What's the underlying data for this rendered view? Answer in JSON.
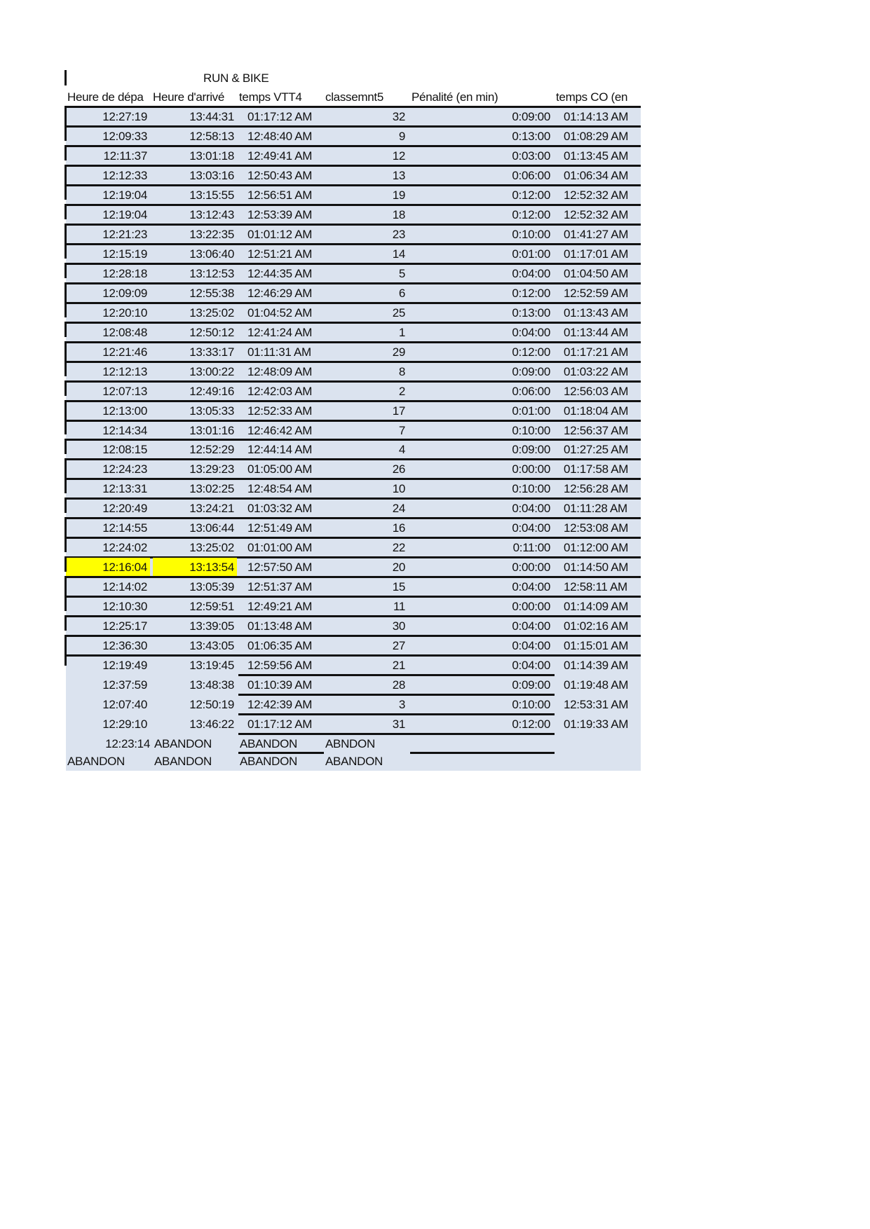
{
  "title": "RUN & BIKE",
  "headers": [
    "Heure de dépa",
    "Heure d'arrivé",
    "temps VTT4",
    "classemnt5",
    "Pénalité (en min)",
    "temps CO (en"
  ],
  "highlight_color": "#ffff00",
  "rows": [
    [
      "12:27:19",
      "13:44:31",
      "01:17:12 AM",
      "32",
      "0:09:00",
      "01:14:13 AM"
    ],
    [
      "12:09:33",
      "12:58:13",
      "12:48:40 AM",
      "9",
      "0:13:00",
      "01:08:29 AM"
    ],
    [
      "12:11:37",
      "13:01:18",
      "12:49:41 AM",
      "12",
      "0:03:00",
      "01:13:45 AM"
    ],
    [
      "12:12:33",
      "13:03:16",
      "12:50:43 AM",
      "13",
      "0:06:00",
      "01:06:34 AM"
    ],
    [
      "12:19:04",
      "13:15:55",
      "12:56:51 AM",
      "19",
      "0:12:00",
      "12:52:32 AM"
    ],
    [
      "12:19:04",
      "13:12:43",
      "12:53:39 AM",
      "18",
      "0:12:00",
      "12:52:32 AM"
    ],
    [
      "12:21:23",
      "13:22:35",
      "01:01:12 AM",
      "23",
      "0:10:00",
      "01:41:27 AM"
    ],
    [
      "12:15:19",
      "13:06:40",
      "12:51:21 AM",
      "14",
      "0:01:00",
      "01:17:01 AM"
    ],
    [
      "12:28:18",
      "13:12:53",
      "12:44:35 AM",
      "5",
      "0:04:00",
      "01:04:50 AM"
    ],
    [
      "12:09:09",
      "12:55:38",
      "12:46:29 AM",
      "6",
      "0:12:00",
      "12:52:59 AM"
    ],
    [
      "12:20:10",
      "13:25:02",
      "01:04:52 AM",
      "25",
      "0:13:00",
      "01:13:43 AM"
    ],
    [
      "12:08:48",
      "12:50:12",
      "12:41:24 AM",
      "1",
      "0:04:00",
      "01:13:44 AM"
    ],
    [
      "12:21:46",
      "13:33:17",
      "01:11:31 AM",
      "29",
      "0:12:00",
      "01:17:21 AM"
    ],
    [
      "12:12:13",
      "13:00:22",
      "12:48:09 AM",
      "8",
      "0:09:00",
      "01:03:22 AM"
    ],
    [
      "12:07:13",
      "12:49:16",
      "12:42:03 AM",
      "2",
      "0:06:00",
      "12:56:03 AM"
    ],
    [
      "12:13:00",
      "13:05:33",
      "12:52:33 AM",
      "17",
      "0:01:00",
      "01:18:04 AM"
    ],
    [
      "12:14:34",
      "13:01:16",
      "12:46:42 AM",
      "7",
      "0:10:00",
      "12:56:37 AM"
    ],
    [
      "12:08:15",
      "12:52:29",
      "12:44:14 AM",
      "4",
      "0:09:00",
      "01:27:25 AM"
    ],
    [
      "12:24:23",
      "13:29:23",
      "01:05:00 AM",
      "26",
      "0:00:00",
      "01:17:58 AM"
    ],
    [
      "12:13:31",
      "13:02:25",
      "12:48:54 AM",
      "10",
      "0:10:00",
      "12:56:28 AM"
    ],
    [
      "12:20:49",
      "13:24:21",
      "01:03:32 AM",
      "24",
      "0:04:00",
      "01:11:28 AM"
    ],
    [
      "12:14:55",
      "13:06:44",
      "12:51:49 AM",
      "16",
      "0:04:00",
      "12:53:08 AM"
    ],
    [
      "12:24:02",
      "13:25:02",
      "01:01:00 AM",
      "22",
      "0:11:00",
      "01:12:00 AM"
    ],
    [
      "12:16:04",
      "13:13:54",
      "12:57:50 AM",
      "20",
      "0:00:00",
      "01:14:50 AM"
    ],
    [
      "12:14:02",
      "13:05:39",
      "12:51:37 AM",
      "15",
      "0:04:00",
      "12:58:11 AM"
    ],
    [
      "12:10:30",
      "12:59:51",
      "12:49:21 AM",
      "11",
      "0:00:00",
      "01:14:09 AM"
    ],
    [
      "12:25:17",
      "13:39:05",
      "01:13:48 AM",
      "30",
      "0:04:00",
      "01:02:16 AM"
    ],
    [
      "12:36:30",
      "13:43:05",
      "01:06:35 AM",
      "27",
      "0:04:00",
      "01:15:01 AM"
    ],
    [
      "12:19:49",
      "13:19:45",
      "12:59:56 AM",
      "21",
      "0:04:00",
      "01:14:39 AM"
    ],
    [
      "12:37:59",
      "13:48:38",
      "01:10:39 AM",
      "28",
      "0:09:00",
      "01:19:48 AM"
    ],
    [
      "12:07:40",
      "12:50:19",
      "12:42:39 AM",
      "3",
      "0:10:00",
      "12:53:31 AM"
    ],
    [
      "12:29:10",
      "13:46:22",
      "01:17:12 AM",
      "31",
      "0:12:00",
      "01:19:33 AM"
    ]
  ],
  "highlighted_row": 23,
  "abandon_rows": [
    [
      "12:23:14",
      "ABANDON",
      "ABANDON",
      "ABNDON"
    ],
    [
      "ABANDON",
      "ABANDON",
      "ABANDON",
      "ABANDON"
    ]
  ]
}
